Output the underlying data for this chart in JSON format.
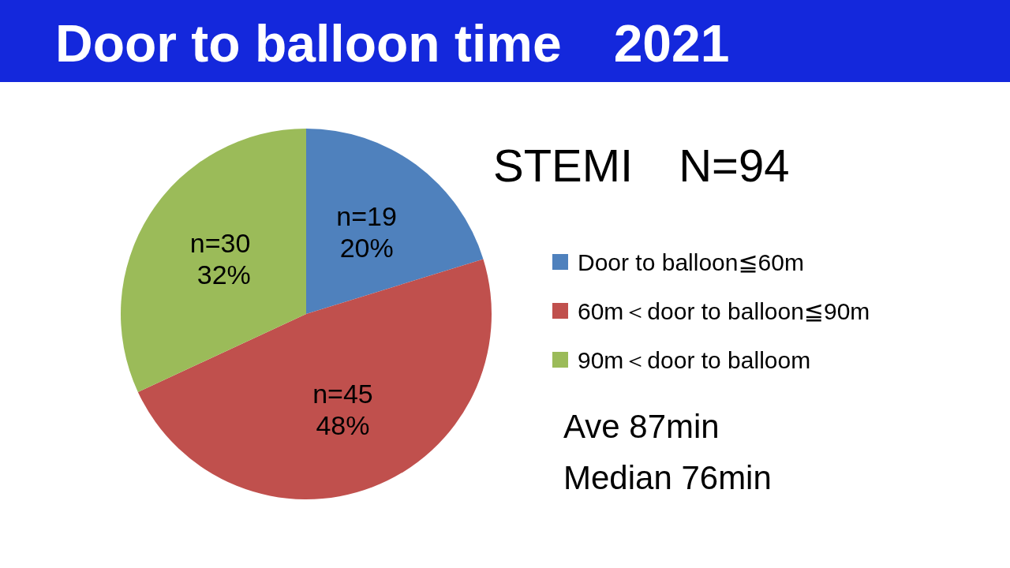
{
  "chart_data": {
    "type": "pie",
    "title": "Door to balloon time　2021",
    "subtitle": "STEMI　N=94",
    "categories": [
      "Door to balloon≦60m",
      "60m＜door to balloon≦90m",
      "90m＜door to balloom"
    ],
    "values": [
      19,
      45,
      30
    ],
    "colors": [
      "#4f81bd",
      "#c0504d",
      "#9bbb59"
    ],
    "value_labels": [
      "n=19\n20%",
      "n=45\n48%",
      "n=30\n 32%"
    ],
    "legend": "right",
    "annotations": [
      "Ave 87min",
      "Median 76min"
    ]
  }
}
